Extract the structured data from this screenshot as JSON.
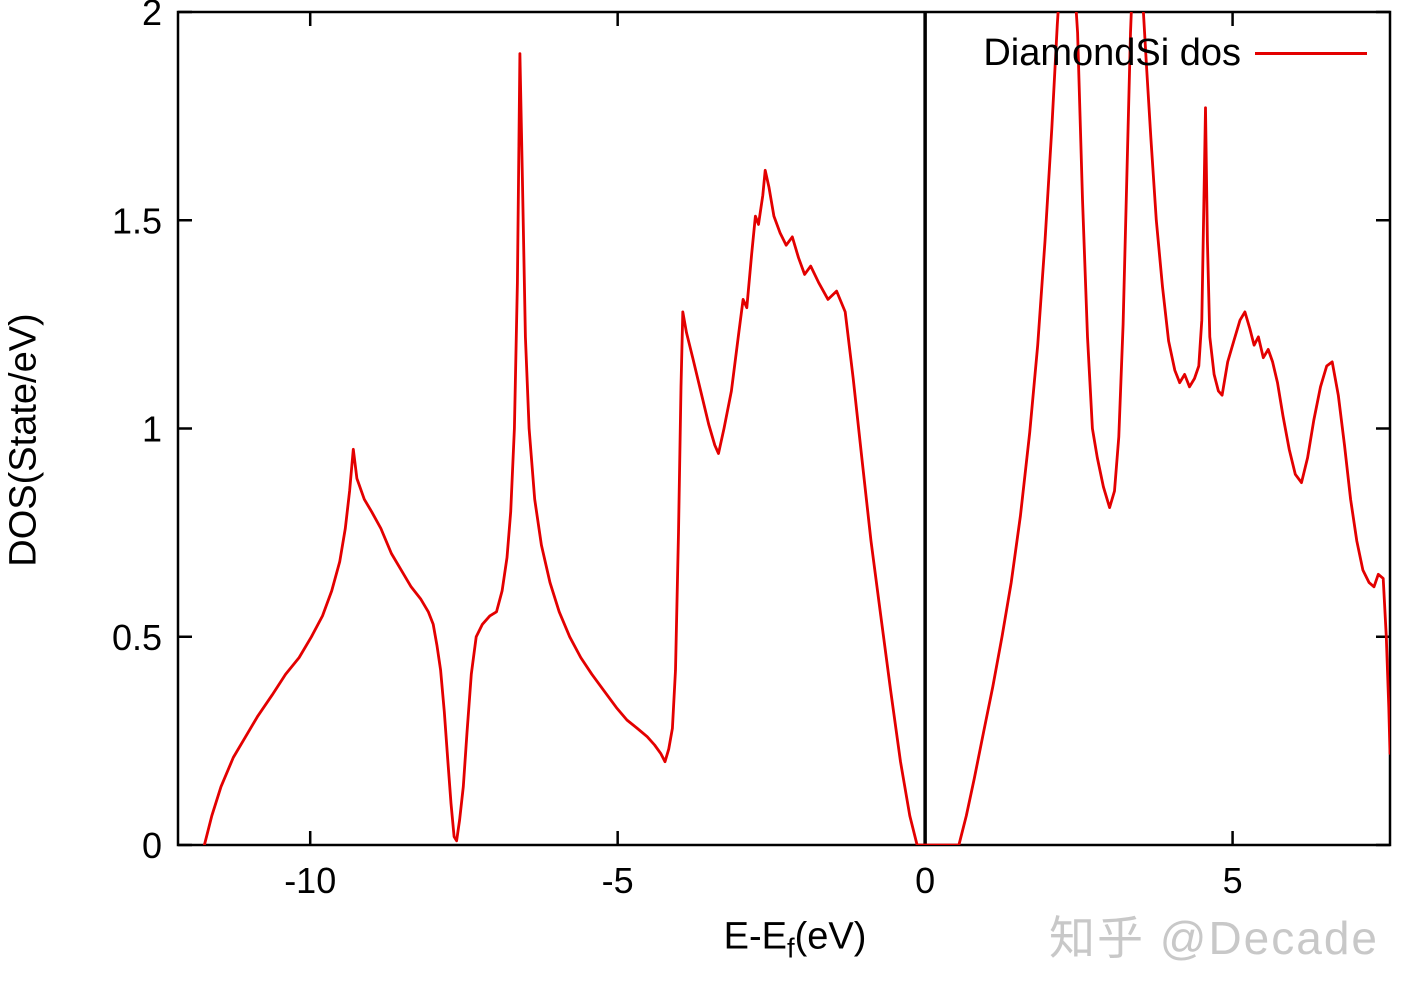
{
  "watermark": {
    "text": "知乎 @Decade",
    "color": "#c6c6c6"
  },
  "chart_data": {
    "type": "line",
    "title": "",
    "ylabel": "DOS(State/eV)",
    "xlabel": {
      "main": "E-E",
      "sub": "f",
      "suffix": "(eV)"
    },
    "legend": {
      "label": "DiamondSi dos",
      "position": "top-right"
    },
    "xlim": [
      -12.15,
      7.56
    ],
    "ylim": [
      0,
      2
    ],
    "grid": false,
    "axis_color": "#000000",
    "fermi_line_x": 0,
    "xticks": [
      {
        "value": -10,
        "label": "-10"
      },
      {
        "value": -5,
        "label": "-5"
      },
      {
        "value": 0,
        "label": "0"
      },
      {
        "value": 5,
        "label": "5"
      }
    ],
    "yticks": [
      {
        "value": 0,
        "label": "0"
      },
      {
        "value": 0.5,
        "label": "0.5"
      },
      {
        "value": 1,
        "label": "1"
      },
      {
        "value": 1.5,
        "label": "1.5"
      },
      {
        "value": 2,
        "label": "2"
      }
    ],
    "series": [
      {
        "name": "DiamondSi dos",
        "color": "#e30000",
        "points": [
          [
            -11.72,
            0
          ],
          [
            -11.6,
            0.07
          ],
          [
            -11.45,
            0.14
          ],
          [
            -11.25,
            0.21
          ],
          [
            -11.05,
            0.26
          ],
          [
            -10.85,
            0.31
          ],
          [
            -10.62,
            0.36
          ],
          [
            -10.4,
            0.41
          ],
          [
            -10.18,
            0.45
          ],
          [
            -9.98,
            0.5
          ],
          [
            -9.8,
            0.55
          ],
          [
            -9.65,
            0.61
          ],
          [
            -9.52,
            0.68
          ],
          [
            -9.43,
            0.76
          ],
          [
            -9.36,
            0.85
          ],
          [
            -9.3,
            0.95
          ],
          [
            -9.24,
            0.88
          ],
          [
            -9.12,
            0.83
          ],
          [
            -9.0,
            0.8
          ],
          [
            -8.85,
            0.76
          ],
          [
            -8.68,
            0.7
          ],
          [
            -8.52,
            0.66
          ],
          [
            -8.36,
            0.62
          ],
          [
            -8.2,
            0.59
          ],
          [
            -8.08,
            0.56
          ],
          [
            -8.0,
            0.53
          ],
          [
            -7.94,
            0.48
          ],
          [
            -7.88,
            0.42
          ],
          [
            -7.82,
            0.32
          ],
          [
            -7.76,
            0.2
          ],
          [
            -7.71,
            0.1
          ],
          [
            -7.66,
            0.02
          ],
          [
            -7.62,
            0.01
          ],
          [
            -7.57,
            0.06
          ],
          [
            -7.51,
            0.14
          ],
          [
            -7.45,
            0.27
          ],
          [
            -7.38,
            0.41
          ],
          [
            -7.3,
            0.5
          ],
          [
            -7.2,
            0.53
          ],
          [
            -7.08,
            0.55
          ],
          [
            -6.97,
            0.56
          ],
          [
            -6.88,
            0.61
          ],
          [
            -6.8,
            0.69
          ],
          [
            -6.74,
            0.8
          ],
          [
            -6.68,
            1.0
          ],
          [
            -6.63,
            1.35
          ],
          [
            -6.59,
            1.9
          ],
          [
            -6.55,
            1.6
          ],
          [
            -6.5,
            1.22
          ],
          [
            -6.44,
            1.0
          ],
          [
            -6.35,
            0.83
          ],
          [
            -6.24,
            0.72
          ],
          [
            -6.1,
            0.63
          ],
          [
            -5.95,
            0.56
          ],
          [
            -5.78,
            0.5
          ],
          [
            -5.6,
            0.45
          ],
          [
            -5.42,
            0.41
          ],
          [
            -5.22,
            0.37
          ],
          [
            -5.02,
            0.33
          ],
          [
            -4.85,
            0.3
          ],
          [
            -4.68,
            0.28
          ],
          [
            -4.52,
            0.26
          ],
          [
            -4.4,
            0.24
          ],
          [
            -4.3,
            0.22
          ],
          [
            -4.23,
            0.2
          ],
          [
            -4.17,
            0.23
          ],
          [
            -4.11,
            0.28
          ],
          [
            -4.06,
            0.42
          ],
          [
            -4.01,
            0.75
          ],
          [
            -3.97,
            1.1
          ],
          [
            -3.94,
            1.28
          ],
          [
            -3.88,
            1.23
          ],
          [
            -3.78,
            1.17
          ],
          [
            -3.65,
            1.09
          ],
          [
            -3.52,
            1.01
          ],
          [
            -3.42,
            0.96
          ],
          [
            -3.36,
            0.94
          ],
          [
            -3.27,
            1.0
          ],
          [
            -3.15,
            1.09
          ],
          [
            -3.03,
            1.23
          ],
          [
            -2.96,
            1.31
          ],
          [
            -2.9,
            1.29
          ],
          [
            -2.82,
            1.42
          ],
          [
            -2.76,
            1.51
          ],
          [
            -2.71,
            1.49
          ],
          [
            -2.64,
            1.56
          ],
          [
            -2.6,
            1.62
          ],
          [
            -2.54,
            1.58
          ],
          [
            -2.46,
            1.51
          ],
          [
            -2.36,
            1.47
          ],
          [
            -2.26,
            1.44
          ],
          [
            -2.16,
            1.46
          ],
          [
            -2.06,
            1.41
          ],
          [
            -1.96,
            1.37
          ],
          [
            -1.86,
            1.39
          ],
          [
            -1.73,
            1.35
          ],
          [
            -1.58,
            1.31
          ],
          [
            -1.44,
            1.33
          ],
          [
            -1.3,
            1.28
          ],
          [
            -1.17,
            1.12
          ],
          [
            -1.03,
            0.93
          ],
          [
            -0.88,
            0.73
          ],
          [
            -0.72,
            0.55
          ],
          [
            -0.56,
            0.37
          ],
          [
            -0.4,
            0.2
          ],
          [
            -0.25,
            0.07
          ],
          [
            -0.13,
            0.0
          ],
          [
            0.55,
            0.0
          ],
          [
            0.67,
            0.07
          ],
          [
            0.8,
            0.16
          ],
          [
            0.95,
            0.27
          ],
          [
            1.1,
            0.38
          ],
          [
            1.25,
            0.5
          ],
          [
            1.4,
            0.63
          ],
          [
            1.55,
            0.79
          ],
          [
            1.7,
            0.99
          ],
          [
            1.83,
            1.2
          ],
          [
            1.95,
            1.45
          ],
          [
            2.06,
            1.72
          ],
          [
            2.15,
            1.97
          ],
          [
            2.25,
            2.2
          ],
          [
            2.38,
            2.18
          ],
          [
            2.48,
            1.95
          ],
          [
            2.56,
            1.55
          ],
          [
            2.64,
            1.22
          ],
          [
            2.72,
            1.0
          ],
          [
            2.8,
            0.93
          ],
          [
            2.9,
            0.86
          ],
          [
            3.0,
            0.81
          ],
          [
            3.08,
            0.85
          ],
          [
            3.15,
            0.98
          ],
          [
            3.22,
            1.25
          ],
          [
            3.28,
            1.6
          ],
          [
            3.34,
            1.95
          ],
          [
            3.4,
            2.18
          ],
          [
            3.5,
            2.2
          ],
          [
            3.55,
            2.0
          ],
          [
            3.6,
            1.87
          ],
          [
            3.67,
            1.7
          ],
          [
            3.76,
            1.5
          ],
          [
            3.86,
            1.34
          ],
          [
            3.96,
            1.21
          ],
          [
            4.06,
            1.14
          ],
          [
            4.14,
            1.11
          ],
          [
            4.22,
            1.13
          ],
          [
            4.3,
            1.1
          ],
          [
            4.38,
            1.12
          ],
          [
            4.45,
            1.15
          ],
          [
            4.5,
            1.26
          ],
          [
            4.54,
            1.6
          ],
          [
            4.56,
            1.77
          ],
          [
            4.59,
            1.45
          ],
          [
            4.63,
            1.22
          ],
          [
            4.7,
            1.13
          ],
          [
            4.77,
            1.09
          ],
          [
            4.83,
            1.08
          ],
          [
            4.92,
            1.16
          ],
          [
            5.02,
            1.21
          ],
          [
            5.12,
            1.26
          ],
          [
            5.2,
            1.28
          ],
          [
            5.28,
            1.24
          ],
          [
            5.35,
            1.2
          ],
          [
            5.42,
            1.22
          ],
          [
            5.5,
            1.17
          ],
          [
            5.58,
            1.19
          ],
          [
            5.65,
            1.16
          ],
          [
            5.73,
            1.11
          ],
          [
            5.82,
            1.03
          ],
          [
            5.92,
            0.95
          ],
          [
            6.02,
            0.89
          ],
          [
            6.12,
            0.87
          ],
          [
            6.22,
            0.93
          ],
          [
            6.32,
            1.02
          ],
          [
            6.43,
            1.1
          ],
          [
            6.53,
            1.15
          ],
          [
            6.62,
            1.16
          ],
          [
            6.72,
            1.08
          ],
          [
            6.82,
            0.96
          ],
          [
            6.92,
            0.83
          ],
          [
            7.02,
            0.73
          ],
          [
            7.12,
            0.66
          ],
          [
            7.22,
            0.63
          ],
          [
            7.3,
            0.62
          ],
          [
            7.37,
            0.65
          ],
          [
            7.45,
            0.64
          ],
          [
            7.5,
            0.5
          ],
          [
            7.54,
            0.33
          ],
          [
            7.56,
            0.22
          ]
        ]
      }
    ]
  }
}
